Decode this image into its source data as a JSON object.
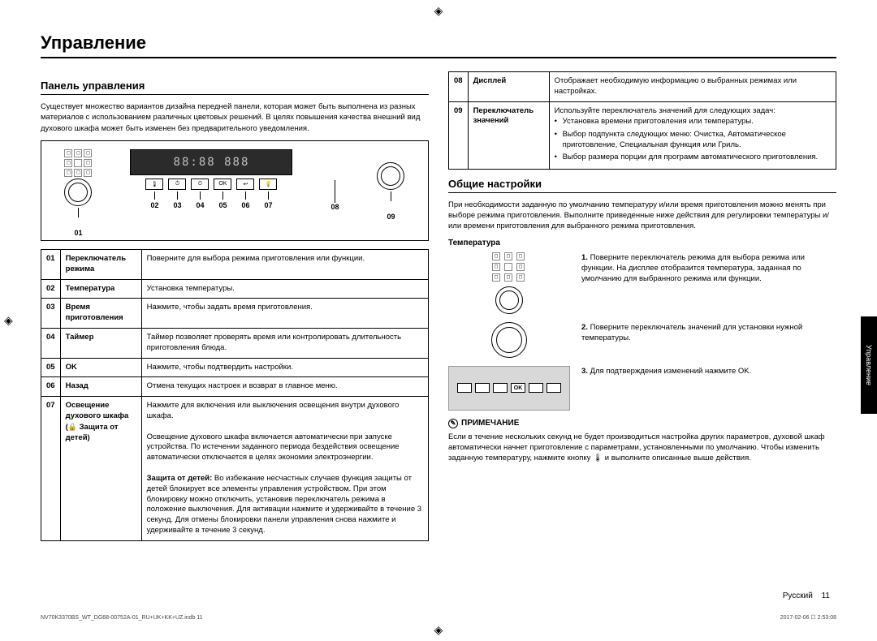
{
  "page": {
    "title": "Управление",
    "lang_label": "Русский",
    "page_number": "11",
    "side_tab": "Управление",
    "meta_left": "NV70K3370BS_WT_DG68-00752A-01_RU+UK+KK+UZ.indb   11",
    "meta_right": "2017-02-06   ☐ 2:53:08"
  },
  "left": {
    "section_title": "Панель управления",
    "intro": "Существует множество вариантов дизайна передней панели, которая может быть выполнена из разных материалов с использованием различных цветовых решений. В целях повышения качества внешний вид духового шкафа может быть изменен без предварительного уведомления.",
    "display_text": "88:88 888",
    "callouts": {
      "c1": "01",
      "c2": "02",
      "c3": "03",
      "c4": "04",
      "c5": "05",
      "c6": "06",
      "c7": "07",
      "c8": "08",
      "c9": "09"
    },
    "table": [
      {
        "num": "01",
        "name": "Переключатель режима",
        "desc": "Поверните для выбора режима приготовления или функции."
      },
      {
        "num": "02",
        "name": "Температура",
        "desc": "Установка температуры."
      },
      {
        "num": "03",
        "name": "Время приготовления",
        "desc": "Нажмите, чтобы задать время приготовления."
      },
      {
        "num": "04",
        "name": "Таймер",
        "desc": "Таймер позволяет проверять время или контролировать длительность приготовления блюда."
      },
      {
        "num": "05",
        "name": "OK",
        "desc": "Нажмите, чтобы подтвердить настройки."
      },
      {
        "num": "06",
        "name": "Назад",
        "desc": "Отмена текущих настроек и возврат в главное меню."
      },
      {
        "num": "07",
        "name": "Освещение духового шкафа (🔒 Защита от детей)",
        "desc": "Нажмите для включения или выключения освещения внутри духового шкафа.\nОсвещение духового шкафа включается автоматически при запуске устройства. По истечении заданного периода бездействия освещение автоматически отключается в целях экономии электроэнергии.\nЗащита от детей: Во избежание несчастных случаев функция защиты от детей блокирует все элементы управления устройством. При этом блокировку можно отключить, установив переключатель режима в положение выключения. Для активации нажмите и удерживайте в течение 3 секунд. Для отмены блокировки панели управления снова нажмите и удерживайте в течение 3 секунд."
      }
    ]
  },
  "right": {
    "top_table": [
      {
        "num": "08",
        "name": "Дисплей",
        "desc": "Отображает необходимую информацию о выбранных режимах или настройках."
      },
      {
        "num": "09",
        "name": "Переключатель значений",
        "desc_intro": "Используйте переключатель значений для следующих задач:",
        "bullets": [
          "Установка времени приготовления или температуры.",
          "Выбор подпункта следующих меню: Очистка, Автоматическое приготовление, Специальная функция или Гриль.",
          "Выбор размера порции для программ автоматического приготовления."
        ]
      }
    ],
    "section_title": "Общие настройки",
    "intro": "При необходимости заданную по умолчанию температуру и/или время приготовления можно менять при выборе режима приготовления. Выполните приведенные ниже действия для регулировки температуры и/или времени приготовления для выбранного режима приготовления.",
    "temp_heading": "Температура",
    "steps": [
      {
        "n": "1.",
        "text": "Поверните переключатель режима для выбора режима или функции. На дисплее отобразится температура, заданная по умолчанию для выбранного режима или функции."
      },
      {
        "n": "2.",
        "text": "Поверните переключатель значений для установки нужной температуры."
      },
      {
        "n": "3.",
        "text": "Для подтверждения изменений нажмите OK."
      }
    ],
    "note_label": "ПРИМЕЧАНИЕ",
    "note_text": "Если в течение нескольких секунд не будет производиться настройка других параметров, духовой шкаф автоматически начнет приготовление с параметрами, установленными по умолчанию. Чтобы изменить заданную температуру, нажмите кнопку 🌡 и выполните описанные выше действия.",
    "ok_label": "OK"
  }
}
